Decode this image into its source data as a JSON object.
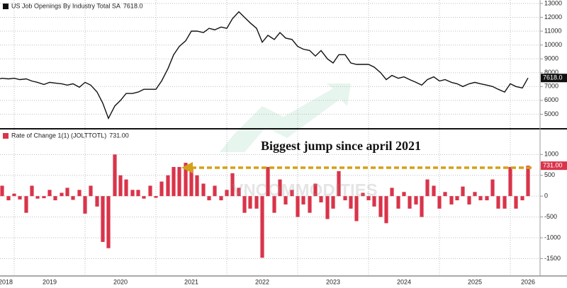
{
  "chart_data": [
    {
      "type": "line",
      "series": [
        {
          "name": "US Job Openings By Industry Total SA",
          "color": "#111111",
          "last_label": "7618.0",
          "values": [
            7500,
            7600,
            7550,
            7600,
            7500,
            7550,
            7400,
            7300,
            7150,
            7300,
            7250,
            7200,
            7100,
            7200,
            6950,
            7300,
            7100,
            6600,
            5800,
            4700,
            5600,
            6000,
            6500,
            6500,
            6600,
            6800,
            6800,
            6800,
            7400,
            8300,
            9300,
            9900,
            10300,
            11000,
            11000,
            10900,
            11200,
            11100,
            11300,
            11200,
            11900,
            12400,
            12000,
            11600,
            11200,
            10200,
            10700,
            10400,
            10900,
            10500,
            10400,
            9900,
            9700,
            9600,
            9200,
            9600,
            9000,
            8700,
            9300,
            9300,
            8700,
            8600,
            8600,
            8600,
            8400,
            8000,
            7500,
            7800,
            7600,
            7700,
            7500,
            7300,
            7100,
            7500,
            7700,
            7400,
            7500,
            7300,
            7200,
            7000,
            7200,
            7300,
            7200,
            7100,
            7000,
            6800,
            6600,
            7200,
            7000,
            6900,
            7618
          ]
        }
      ],
      "x": [
        2018.75,
        2018.83,
        2018.92,
        2019,
        2019.08,
        2019.17,
        2019.25,
        2019.33,
        2019.42,
        2019.5,
        2019.58,
        2019.67,
        2019.75,
        2019.83,
        2019.92,
        2020,
        2020.08,
        2020.17,
        2020.25,
        2020.33,
        2020.42,
        2020.5,
        2020.58,
        2020.67,
        2020.75,
        2020.83,
        2020.92,
        2021,
        2021.08,
        2021.17,
        2021.25,
        2021.33,
        2021.42,
        2021.5,
        2021.58,
        2021.67,
        2021.75,
        2021.83,
        2021.92,
        2022,
        2022.08,
        2022.17,
        2022.25,
        2022.33,
        2022.42,
        2022.5,
        2022.58,
        2022.67,
        2022.75,
        2022.83,
        2022.92,
        2023,
        2023.08,
        2023.17,
        2023.25,
        2023.33,
        2023.42,
        2023.5,
        2023.58,
        2023.67,
        2023.75,
        2023.83,
        2023.92,
        2024,
        2024.08,
        2024.17,
        2024.25,
        2024.33,
        2024.42,
        2024.5,
        2024.58,
        2024.67,
        2024.75,
        2024.83,
        2024.92,
        2025,
        2025.08,
        2025.17,
        2025.25,
        2025.33,
        2025.42,
        2025.5,
        2025.58,
        2025.67,
        2025.75,
        2025.83,
        2025.92,
        2026,
        2026.08,
        2026.17,
        2026.25
      ],
      "xlim": [
        2018.8,
        2026.42
      ],
      "xgrid": [
        2019,
        2020,
        2021,
        2022,
        2023,
        2024,
        2025,
        2026
      ],
      "ylim": [
        4000,
        13250
      ],
      "yticks": [
        5000,
        6000,
        7000,
        8000,
        9000,
        10000,
        11000,
        12000,
        13000
      ],
      "grid": true
    },
    {
      "type": "bar",
      "series": [
        {
          "name": "Rate of Change 1(1) (JOLTTOTL)",
          "color": "#d9344a",
          "last_label": "731.00",
          "values": [
            150,
            250,
            -100,
            60,
            -80,
            -400,
            250,
            -60,
            -50,
            150,
            -100,
            80,
            200,
            -90,
            150,
            -420,
            250,
            -250,
            -1100,
            -1250,
            1000,
            500,
            400,
            150,
            150,
            -60,
            250,
            -40,
            350,
            500,
            700,
            700,
            800,
            700,
            500,
            300,
            -100,
            250,
            -100,
            150,
            550,
            200,
            -400,
            -300,
            -300,
            -1480,
            700,
            -400,
            400,
            -200,
            150,
            -500,
            -200,
            -400,
            300,
            -150,
            -550,
            -300,
            600,
            -100,
            -300,
            -600,
            80,
            -100,
            -250,
            -500,
            -650,
            200,
            -300,
            100,
            -300,
            -200,
            -500,
            400,
            250,
            -300,
            100,
            -200,
            -100,
            230,
            -200,
            100,
            -100,
            -100,
            400,
            -300,
            -300,
            700,
            -300,
            -100,
            731
          ]
        }
      ],
      "x": [
        2018.75,
        2018.83,
        2018.92,
        2019,
        2019.08,
        2019.17,
        2019.25,
        2019.33,
        2019.42,
        2019.5,
        2019.58,
        2019.67,
        2019.75,
        2019.83,
        2019.92,
        2020,
        2020.08,
        2020.17,
        2020.25,
        2020.33,
        2020.42,
        2020.5,
        2020.58,
        2020.67,
        2020.75,
        2020.83,
        2020.92,
        2021,
        2021.08,
        2021.17,
        2021.25,
        2021.33,
        2021.42,
        2021.5,
        2021.58,
        2021.67,
        2021.75,
        2021.83,
        2021.92,
        2022,
        2022.08,
        2022.17,
        2022.25,
        2022.33,
        2022.42,
        2022.5,
        2022.58,
        2022.67,
        2022.75,
        2022.83,
        2022.92,
        2023,
        2023.08,
        2023.17,
        2023.25,
        2023.33,
        2023.42,
        2023.5,
        2023.58,
        2023.67,
        2023.75,
        2023.83,
        2023.92,
        2024,
        2024.08,
        2024.17,
        2024.25,
        2024.33,
        2024.42,
        2024.5,
        2024.58,
        2024.67,
        2024.75,
        2024.83,
        2024.92,
        2025,
        2025.08,
        2025.17,
        2025.25,
        2025.33,
        2025.42,
        2025.5,
        2025.58,
        2025.67,
        2025.75,
        2025.83,
        2025.92,
        2026,
        2026.08,
        2026.17,
        2026.25
      ],
      "xlim": [
        2018.8,
        2026.42
      ],
      "xgrid": [
        2019,
        2020,
        2021,
        2022,
        2023,
        2024,
        2025,
        2026
      ],
      "xticks": [
        {
          "value": 2018.88,
          "label": "2018"
        },
        {
          "value": 2019.5,
          "label": "2019"
        },
        {
          "value": 2020.5,
          "label": "2020"
        },
        {
          "value": 2021.5,
          "label": "2021"
        },
        {
          "value": 2022.5,
          "label": "2022"
        },
        {
          "value": 2023.5,
          "label": "2023"
        },
        {
          "value": 2024.5,
          "label": "2024"
        },
        {
          "value": 2025.5,
          "label": "2025"
        },
        {
          "value": 2026.25,
          "label": "2026"
        }
      ],
      "ylim": [
        -1900,
        1600
      ],
      "yticks": [
        -1500,
        -1000,
        -500,
        0,
        500,
        1000
      ],
      "grid": true,
      "annotation": "Biggest jump since april 2021",
      "watermark": "VNCOMMODITIES"
    }
  ]
}
